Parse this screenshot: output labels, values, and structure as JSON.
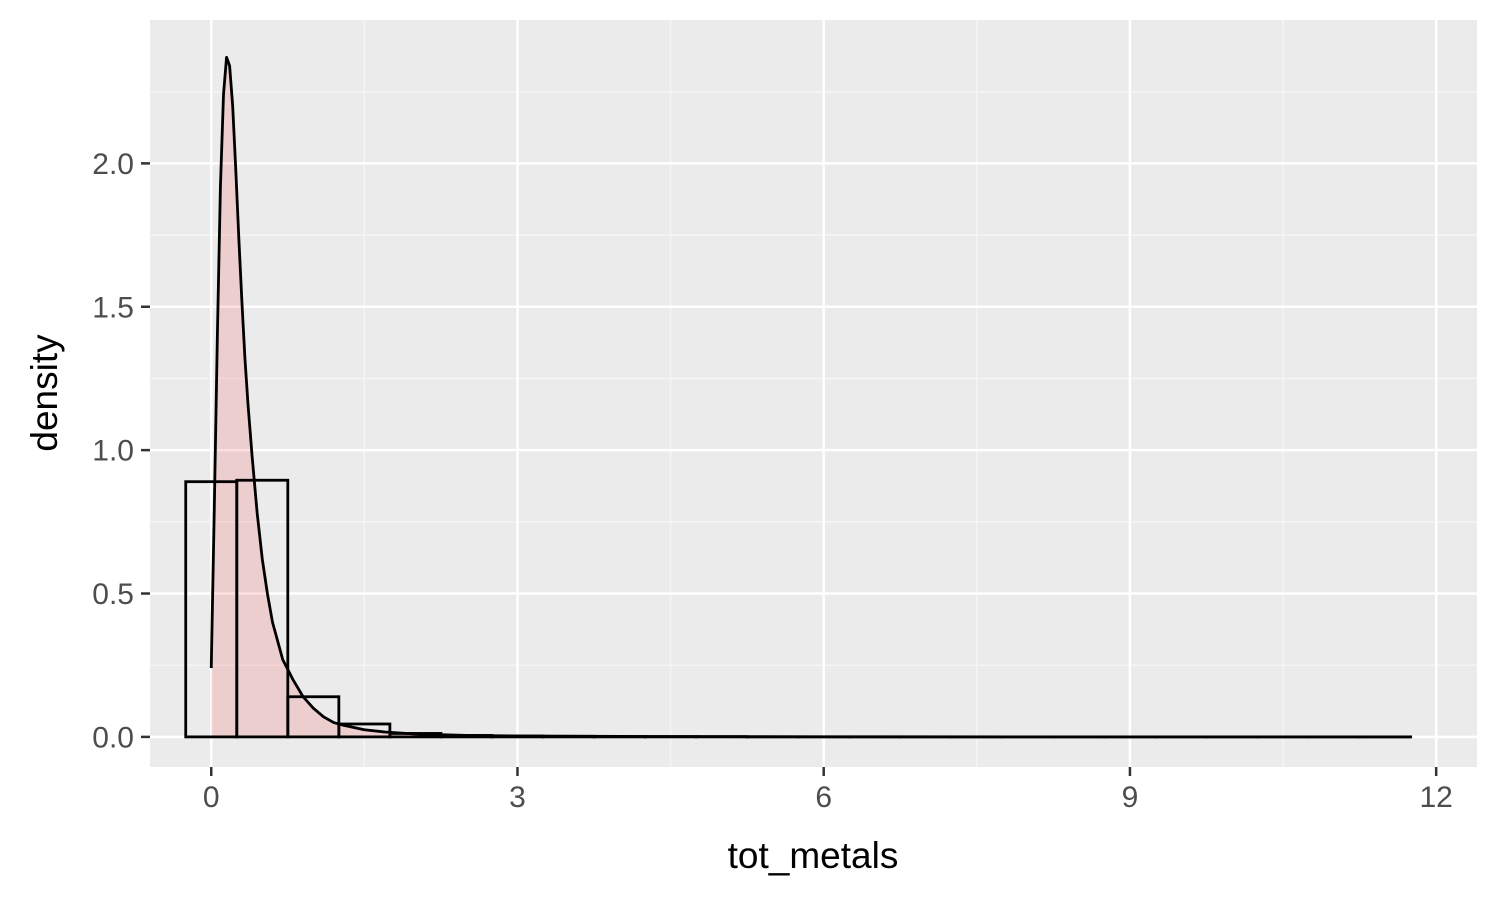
{
  "chart_data": {
    "type": "histogram",
    "xlabel": "tot_metals",
    "ylabel": "density",
    "xlim": [
      -0.6,
      12.4
    ],
    "ylim": [
      -0.105,
      2.5
    ],
    "x_ticks": [
      0,
      3,
      6,
      9,
      12
    ],
    "x_tick_labels": [
      "0",
      "3",
      "6",
      "9",
      "12"
    ],
    "y_ticks": [
      0.0,
      0.5,
      1.0,
      1.5,
      2.0
    ],
    "y_tick_labels": [
      "0.0",
      "0.5",
      "1.0",
      "1.5",
      "2.0"
    ],
    "grid": true,
    "histogram": {
      "bin_width": 0.5,
      "bins": [
        {
          "x0": -0.25,
          "x1": 0.25,
          "density": 0.89
        },
        {
          "x0": 0.25,
          "x1": 0.75,
          "density": 0.895
        },
        {
          "x0": 0.75,
          "x1": 1.25,
          "density": 0.14
        },
        {
          "x0": 1.25,
          "x1": 1.75,
          "density": 0.045
        },
        {
          "x0": 1.75,
          "x1": 2.25,
          "density": 0.012
        },
        {
          "x0": 2.25,
          "x1": 2.75,
          "density": 0.005
        },
        {
          "x0": 2.75,
          "x1": 3.25,
          "density": 0.003
        },
        {
          "x0": 3.25,
          "x1": 3.75,
          "density": 0.002
        },
        {
          "x0": 3.75,
          "x1": 4.25,
          "density": 0.0015
        },
        {
          "x0": 4.25,
          "x1": 4.75,
          "density": 0.001
        },
        {
          "x0": 4.75,
          "x1": 5.25,
          "density": 0.0008
        },
        {
          "x0": 5.25,
          "x1": 5.75,
          "density": 0.0
        },
        {
          "x0": 5.75,
          "x1": 6.25,
          "density": 0.0
        },
        {
          "x0": 6.25,
          "x1": 6.75,
          "density": 0.0
        },
        {
          "x0": 6.75,
          "x1": 7.25,
          "density": 0.0
        },
        {
          "x0": 7.25,
          "x1": 7.75,
          "density": 0.0
        },
        {
          "x0": 7.75,
          "x1": 8.25,
          "density": 0.0
        },
        {
          "x0": 8.25,
          "x1": 8.75,
          "density": 0.0
        },
        {
          "x0": 8.75,
          "x1": 9.25,
          "density": 0.0
        },
        {
          "x0": 9.25,
          "x1": 9.75,
          "density": 0.0
        },
        {
          "x0": 9.75,
          "x1": 10.25,
          "density": 0.0
        },
        {
          "x0": 10.25,
          "x1": 10.75,
          "density": 0.0
        },
        {
          "x0": 10.75,
          "x1": 11.25,
          "density": 0.0
        },
        {
          "x0": 11.25,
          "x1": 11.75,
          "density": 0.0
        }
      ],
      "fill": "#ffffff",
      "stroke": "#000000"
    },
    "density_curve": {
      "x": [
        0.0,
        0.03,
        0.06,
        0.09,
        0.12,
        0.15,
        0.18,
        0.21,
        0.24,
        0.27,
        0.3,
        0.33,
        0.36,
        0.4,
        0.45,
        0.5,
        0.55,
        0.6,
        0.7,
        0.8,
        0.9,
        1.0,
        1.1,
        1.2,
        1.3,
        1.5,
        1.7,
        2.0,
        2.5,
        3.0,
        4.0,
        5.0,
        6.0,
        8.0,
        10.0,
        11.75
      ],
      "y": [
        0.24,
        0.8,
        1.4,
        1.92,
        2.24,
        2.37,
        2.34,
        2.2,
        1.98,
        1.74,
        1.52,
        1.32,
        1.16,
        0.98,
        0.78,
        0.62,
        0.5,
        0.4,
        0.27,
        0.2,
        0.14,
        0.1,
        0.07,
        0.05,
        0.04,
        0.025,
        0.017,
        0.01,
        0.005,
        0.003,
        0.0015,
        0.0008,
        0.0004,
        0.0001,
        0.0,
        0.0
      ],
      "fill": "#ff0000",
      "fill_alpha": 0.12,
      "stroke": "#000000"
    },
    "colors": {
      "panel_background": "#ebebeb",
      "grid_major": "#ffffff",
      "grid_minor": "#f5f5f5",
      "tick_label": "#4d4d4d",
      "tick_mark": "#333333",
      "axis_title": "#000000"
    }
  }
}
